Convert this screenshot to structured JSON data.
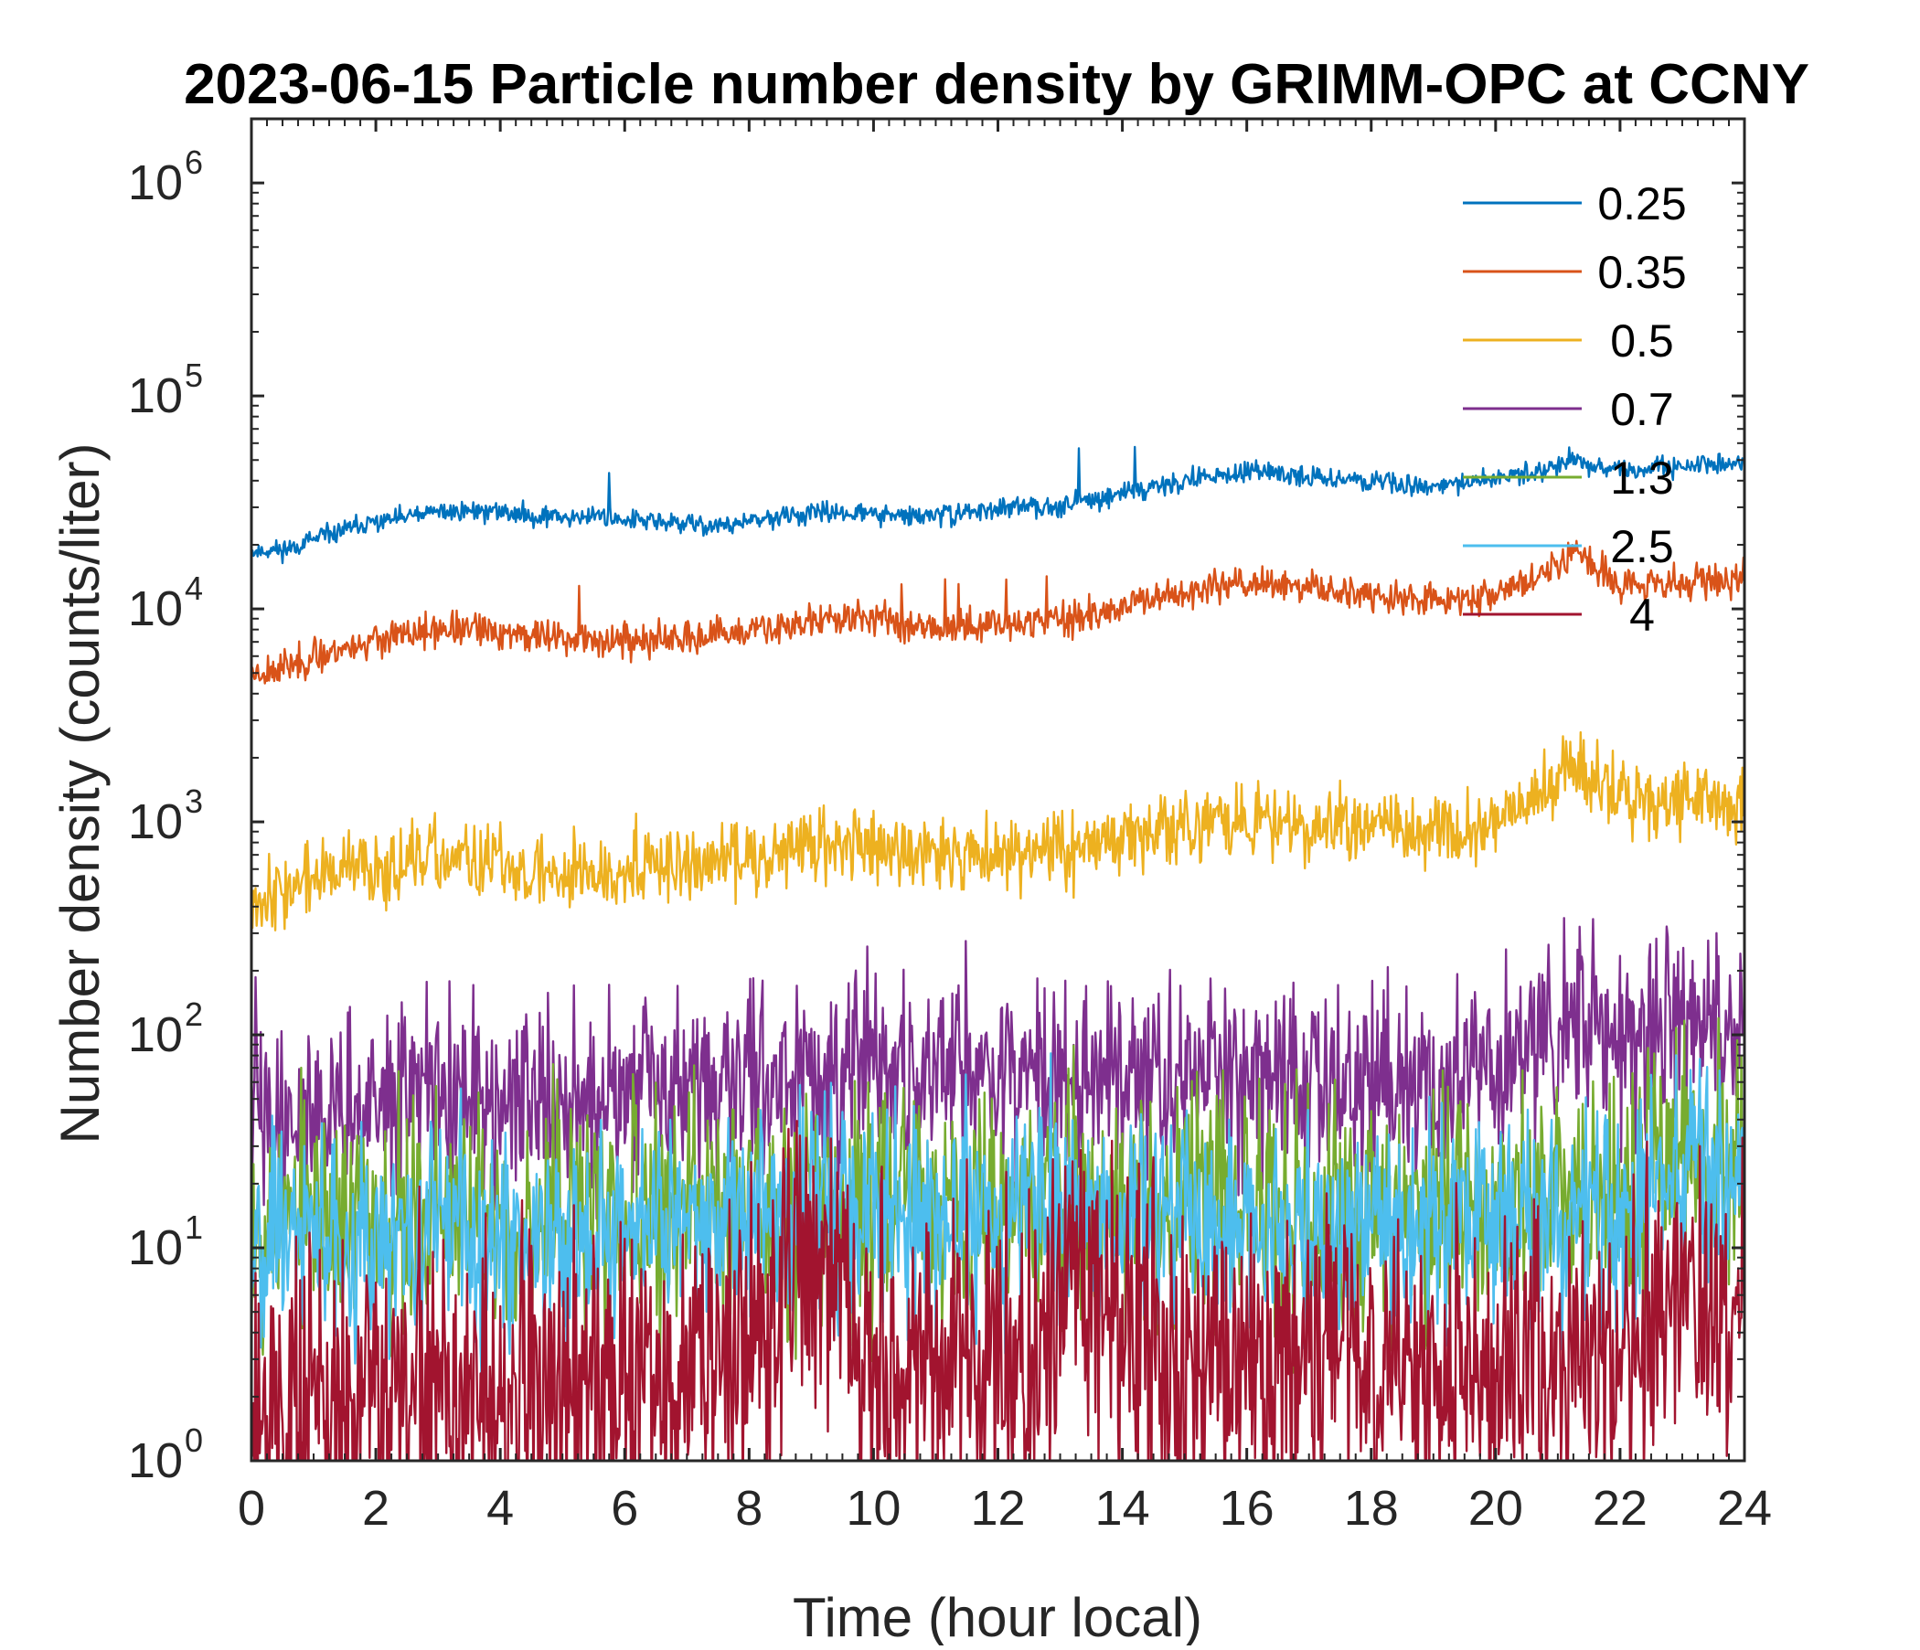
{
  "chart_data": {
    "type": "line",
    "title": "2023-06-15 Particle number density by GRIMM-OPC at CCNY",
    "xlabel": "Time (hour local)",
    "ylabel": "Number density (counts/liter)",
    "xlim": [
      0,
      24
    ],
    "ylim": [
      1,
      2000000
    ],
    "yscale": "log",
    "grid": false,
    "legend_position": "top-right",
    "x_ticks": [
      0,
      2,
      4,
      6,
      8,
      10,
      12,
      14,
      16,
      18,
      20,
      22,
      24
    ],
    "x_tick_labels": [
      "0",
      "2",
      "4",
      "6",
      "8",
      "10",
      "12",
      "14",
      "16",
      "18",
      "20",
      "22",
      "24"
    ],
    "y_ticks": [
      {
        "value": 1,
        "base": "10",
        "exponent": "0"
      },
      {
        "value": 10,
        "base": "10",
        "exponent": "1"
      },
      {
        "value": 100,
        "base": "10",
        "exponent": "2"
      },
      {
        "value": 1000,
        "base": "10",
        "exponent": "3"
      },
      {
        "value": 10000,
        "base": "10",
        "exponent": "4"
      },
      {
        "value": 100000,
        "base": "10",
        "exponent": "5"
      },
      {
        "value": 1000000,
        "base": "10",
        "exponent": "6"
      }
    ],
    "series": [
      {
        "name": "0.25",
        "color": "#0072BD",
        "noise": 0.035,
        "seed": 11,
        "x": [
          0,
          0.5,
          1,
          1.5,
          2,
          2.5,
          3,
          3.5,
          4,
          4.5,
          5,
          5.5,
          6,
          6.5,
          7,
          7.5,
          8,
          8.5,
          9,
          9.5,
          10,
          10.5,
          11,
          11.5,
          12,
          12.5,
          13,
          13.5,
          14,
          14.5,
          15,
          15.5,
          16,
          16.5,
          17,
          17.5,
          18,
          18.5,
          19,
          19.5,
          20,
          20.5,
          21,
          21.2,
          21.5,
          22,
          22.5,
          23,
          23.5,
          24
        ],
        "y": [
          18500,
          19000,
          21000,
          23500,
          25500,
          27000,
          28500,
          29000,
          28500,
          27500,
          27000,
          27500,
          26500,
          25500,
          25000,
          24500,
          25500,
          27000,
          28000,
          28500,
          28000,
          27000,
          27500,
          28500,
          29500,
          30000,
          31000,
          32500,
          35000,
          37500,
          40000,
          42000,
          43500,
          43000,
          42000,
          41000,
          40000,
          38500,
          38000,
          38500,
          41000,
          44000,
          47000,
          52000,
          47000,
          44000,
          45000,
          47000,
          48000,
          49000
        ]
      },
      {
        "name": "0.35",
        "color": "#D95319",
        "noise": 0.06,
        "seed": 23,
        "x": [
          0,
          0.5,
          1,
          1.5,
          2,
          2.5,
          3,
          3.5,
          4,
          4.5,
          5,
          5.5,
          6,
          6.5,
          7,
          7.5,
          8,
          8.5,
          9,
          9.5,
          10,
          10.5,
          11,
          11.5,
          12,
          12.5,
          13,
          13.5,
          14,
          14.5,
          15,
          15.5,
          16,
          16.5,
          17,
          17.5,
          18,
          18.5,
          19,
          19.5,
          20,
          20.5,
          21,
          21.3,
          21.7,
          22,
          22.5,
          23,
          23.5,
          24
        ],
        "y": [
          5000,
          5300,
          5900,
          6600,
          7100,
          7500,
          7900,
          8000,
          7800,
          7500,
          7300,
          7200,
          7100,
          7100,
          7200,
          7400,
          7800,
          8300,
          8800,
          9100,
          9000,
          8600,
          8200,
          8300,
          8600,
          8700,
          9000,
          9300,
          10000,
          11000,
          12000,
          13000,
          13500,
          13000,
          12500,
          12000,
          11500,
          11200,
          11000,
          11300,
          12000,
          13500,
          15500,
          19000,
          14500,
          13500,
          13000,
          13300,
          13600,
          14000
        ]
      },
      {
        "name": "0.5",
        "color": "#EDB120",
        "noise": 0.13,
        "seed": 37,
        "x": [
          0,
          0.5,
          1,
          1.5,
          2,
          2.5,
          3,
          3.5,
          4,
          4.5,
          5,
          5.5,
          6,
          6.5,
          7,
          7.5,
          8,
          8.5,
          9,
          9.5,
          10,
          10.5,
          11,
          11.5,
          12,
          12.5,
          13,
          13.5,
          14,
          14.5,
          15,
          15.5,
          16,
          16.5,
          17,
          17.5,
          18,
          18.5,
          19,
          19.5,
          20,
          20.5,
          21,
          21.2,
          21.5,
          22,
          22.5,
          23,
          23.5,
          24
        ],
        "y": [
          450,
          480,
          540,
          590,
          620,
          640,
          660,
          650,
          620,
          590,
          570,
          580,
          600,
          610,
          620,
          650,
          700,
          740,
          780,
          790,
          770,
          730,
          700,
          710,
          720,
          730,
          760,
          790,
          840,
          900,
          950,
          1000,
          1030,
          1000,
          960,
          930,
          910,
          900,
          900,
          920,
          1000,
          1200,
          1600,
          2000,
          1600,
          1300,
          1280,
          1300,
          1250,
          1200
        ]
      },
      {
        "name": "0.7",
        "color": "#7E2F8E",
        "noise": 0.33,
        "seed": 41,
        "x": [
          0,
          1,
          2,
          3,
          4,
          5,
          6,
          7,
          8,
          9,
          10,
          11,
          12,
          13,
          14,
          15,
          16,
          17,
          18,
          19,
          20,
          21,
          21.5,
          22,
          23,
          24
        ],
        "y": [
          40,
          45,
          48,
          50,
          50,
          48,
          50,
          54,
          62,
          68,
          64,
          62,
          64,
          70,
          66,
          62,
          62,
          62,
          62,
          62,
          70,
          95,
          125,
          95,
          115,
          115
        ]
      },
      {
        "name": "1.3",
        "color": "#77AC30",
        "noise": 0.42,
        "seed": 53,
        "x": [
          0,
          2,
          4,
          6,
          8,
          9,
          10,
          12,
          13,
          14,
          16,
          18,
          20,
          22,
          22.8,
          24
        ],
        "y": [
          14,
          14,
          14,
          14,
          16,
          17,
          16,
          16,
          18,
          16,
          15,
          15,
          16,
          16,
          28,
          24
        ]
      },
      {
        "name": "2.5",
        "color": "#4DBEEE",
        "noise": 0.38,
        "seed": 67,
        "x": [
          0,
          2,
          4,
          6,
          8,
          9,
          10,
          12,
          13,
          14,
          16,
          18,
          20,
          22,
          22.8,
          24
        ],
        "y": [
          12,
          12,
          12,
          12,
          14,
          16,
          14,
          14,
          15,
          14,
          13,
          13,
          13,
          14,
          24,
          20
        ]
      },
      {
        "name": "4",
        "color": "#A2142F",
        "noise": 0.55,
        "seed": 79,
        "x": [
          0,
          2,
          4,
          6,
          7.5,
          8.5,
          9,
          9.5,
          10,
          11,
          12,
          13,
          13.5,
          14,
          16,
          18,
          20,
          22,
          22.5,
          23,
          24
        ],
        "y": [
          2,
          2,
          2,
          2,
          3,
          7,
          10,
          6,
          3,
          3,
          3,
          5,
          10,
          4,
          3,
          3,
          3,
          3,
          6,
          5,
          5
        ]
      }
    ]
  }
}
